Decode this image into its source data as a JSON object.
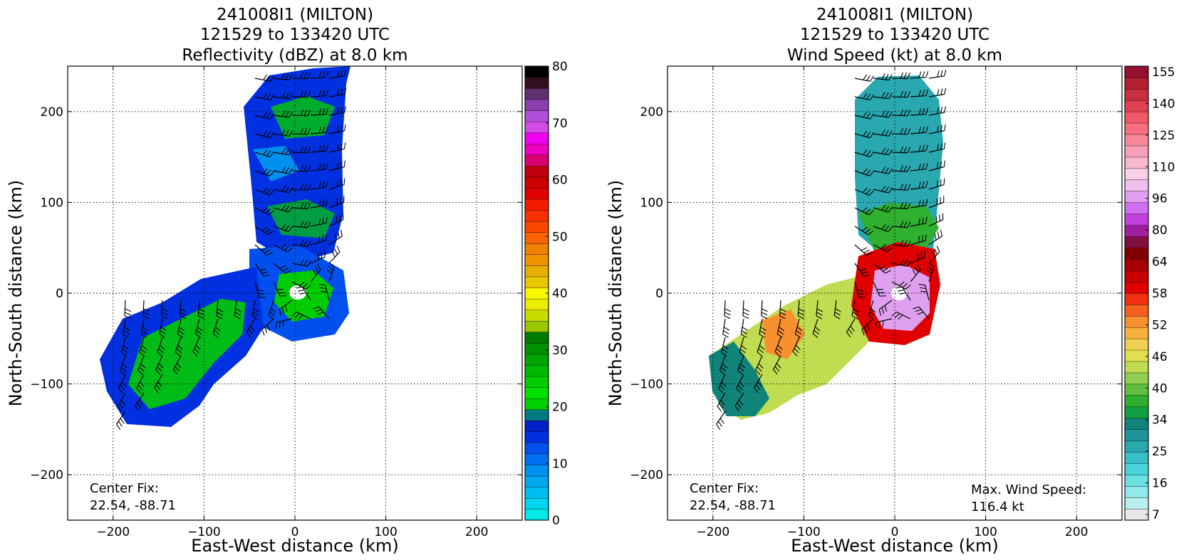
{
  "chart_data": [
    {
      "type": "heatmap",
      "title_lines": [
        "241008I1 (MILTON)",
        "121529 to 133420 UTC",
        "Reflectivity (dBZ) at 8.0 km"
      ],
      "xlabel": "East-West distance (km)",
      "ylabel": "North-South distance (km)",
      "xlim": [
        -250,
        250
      ],
      "ylim": [
        -250,
        250
      ],
      "xticks": [
        -200,
        -100,
        0,
        100,
        200
      ],
      "yticks": [
        -200,
        -100,
        0,
        100,
        200
      ],
      "grid": true,
      "colorbar": {
        "min": 0,
        "max": 80,
        "ticks": [
          "0",
          "10",
          "20",
          "30",
          "40",
          "50",
          "60",
          "70",
          "80"
        ],
        "colors": [
          "#00e8e8",
          "#00d4ee",
          "#00bff0",
          "#00a8f0",
          "#0090f0",
          "#0070f0",
          "#0050f0",
          "#0030e0",
          "#0020c8",
          "#007a80",
          "#00d000",
          "#00e000",
          "#00cc00",
          "#00b800",
          "#00a400",
          "#009000",
          "#007c00",
          "#9ac800",
          "#c8dc00",
          "#ecec00",
          "#f8f800",
          "#e8c800",
          "#e8b000",
          "#f09400",
          "#f08000",
          "#f86400",
          "#f84800",
          "#f83000",
          "#f41c00",
          "#e00000",
          "#cc0000",
          "#c00010",
          "#d80070",
          "#ec00c0",
          "#f000f0",
          "#d44ce8",
          "#b050d8",
          "#8c40b0",
          "#603070",
          "#301020",
          "#000000"
        ]
      },
      "annotations": {
        "center_fix_label": "Center Fix:",
        "center_fix_value": "22.54, -88.71"
      },
      "field_colors": {
        "low": "#0030e0",
        "mid": "#00cc00",
        "teal": "#007a80",
        "high": "#00a8f0"
      }
    },
    {
      "type": "heatmap",
      "title_lines": [
        "241008I1 (MILTON)",
        "121529 to 133420 UTC",
        "Wind Speed (kt) at 8.0 km"
      ],
      "xlabel": "East-West distance (km)",
      "ylabel": "North-South distance (km)",
      "xlim": [
        -250,
        250
      ],
      "ylim": [
        -250,
        250
      ],
      "xticks": [
        -200,
        -100,
        0,
        100,
        200
      ],
      "yticks": [
        -200,
        -100,
        0,
        100,
        200
      ],
      "grid": true,
      "colorbar": {
        "ticks": [
          "7",
          "16",
          "25",
          "34",
          "40",
          "46",
          "52",
          "58",
          "64",
          "80",
          "96",
          "110",
          "125",
          "140",
          "155"
        ],
        "colors": [
          "#e8e8e8",
          "#b8f0f0",
          "#90eaea",
          "#6ae0e0",
          "#48d4d8",
          "#38c0c8",
          "#2aa8b0",
          "#20949c",
          "#108478",
          "#10a040",
          "#30b030",
          "#60c040",
          "#90d050",
          "#c0dc50",
          "#e0e050",
          "#f0d050",
          "#f8b040",
          "#f89030",
          "#f86020",
          "#f03010",
          "#e00000",
          "#c80000",
          "#a80000",
          "#800000",
          "#801040",
          "#a020a0",
          "#c040e0",
          "#d070f0",
          "#e0a0f0",
          "#f0c0ec",
          "#f8d0e8",
          "#f8b8d0",
          "#f8a0b8",
          "#f88898",
          "#f87080",
          "#f05868",
          "#e04050",
          "#c83040",
          "#b02030",
          "#981030"
        ]
      },
      "annotations": {
        "center_fix_label": "Center Fix:",
        "center_fix_value": "22.54, -88.71",
        "max_wind_label": "Max. Wind Speed:",
        "max_wind_value": "116.4 kt"
      },
      "field_colors": {
        "outer": "#2aa8b0",
        "band": "#c0dc50",
        "hot": "#f03010",
        "core": "#e0a0f0"
      }
    }
  ]
}
